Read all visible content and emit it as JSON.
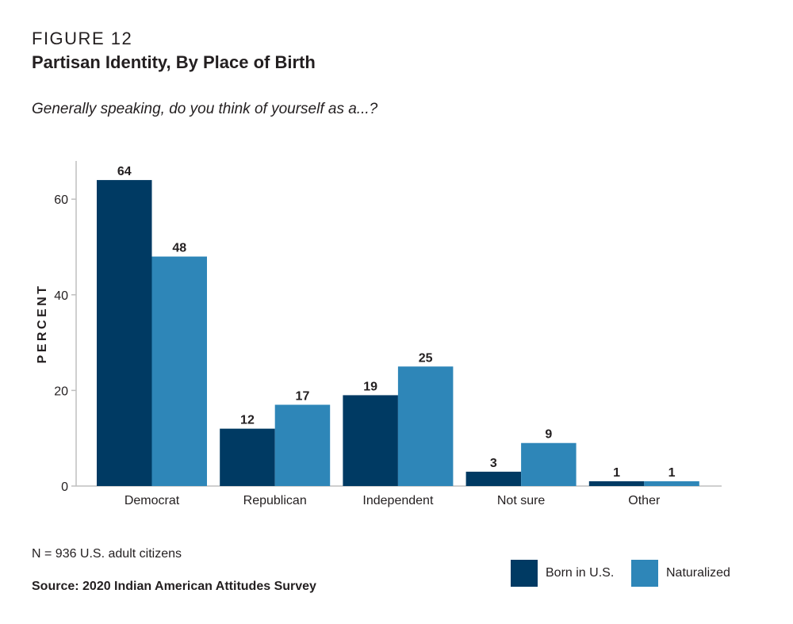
{
  "header": {
    "figure_label": "FIGURE 12",
    "title": "Partisan Identity, By Place of Birth",
    "question": "Generally speaking, do you think of yourself as a...?"
  },
  "footer": {
    "note": "N = 936 U.S. adult citizens",
    "source": "Source: 2020 Indian American Attitudes Survey"
  },
  "colors": {
    "born_in_us": "#003a63",
    "naturalized": "#2e86b8",
    "axis": "#bfbfbf",
    "text": "#231f20"
  },
  "chart_data": {
    "type": "bar",
    "title": "Partisan Identity, By Place of Birth",
    "ylabel": "PERCENT",
    "xlabel": "",
    "ylim": [
      0,
      68
    ],
    "yticks": [
      0,
      20,
      40,
      60
    ],
    "grid": false,
    "legend_position": "bottom-right",
    "categories": [
      "Democrat",
      "Republican",
      "Independent",
      "Not sure",
      "Other"
    ],
    "series": [
      {
        "name": "Born in U.S.",
        "values": [
          64,
          12,
          19,
          3,
          1
        ],
        "color": "#003a63"
      },
      {
        "name": "Naturalized",
        "values": [
          48,
          17,
          25,
          9,
          1
        ],
        "color": "#2e86b8"
      }
    ]
  }
}
